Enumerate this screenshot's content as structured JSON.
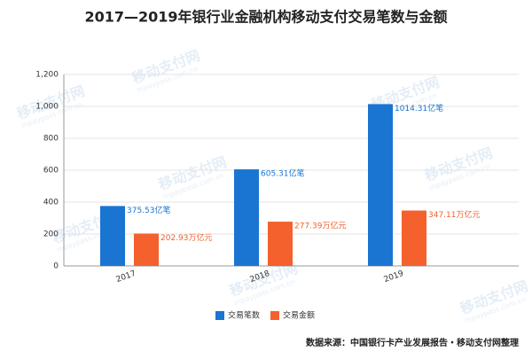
{
  "chart_data": {
    "type": "bar",
    "title": "2017—2019年银行业金融机构移动支付交易笔数与金额",
    "categories": [
      "2017",
      "2018",
      "2019"
    ],
    "series": [
      {
        "name": "交易笔数",
        "color": "#1a75d2",
        "values": [
          375.53,
          605.31,
          1014.31
        ],
        "value_labels": [
          "375.53亿笔",
          "605.31亿笔",
          "1014.31亿笔"
        ]
      },
      {
        "name": "交易金额",
        "color": "#f4612c",
        "values": [
          202.93,
          277.39,
          347.11
        ],
        "value_labels": [
          "202.93万亿元",
          "277.39万亿元",
          "347.11万亿元"
        ]
      }
    ],
    "ylim": [
      0,
      1200
    ],
    "yticks": [
      0,
      200,
      400,
      600,
      800,
      {
        "value": 1000,
        "label": "1,000"
      },
      {
        "value": 1200,
        "label": "1,200"
      }
    ],
    "grid": true,
    "legend": "bottom",
    "source": "数据来源：中国银行卡产业发展报告・移动支付网整理",
    "watermark": "移动支付网",
    "watermark_url": "mpaypass.com.cn"
  }
}
